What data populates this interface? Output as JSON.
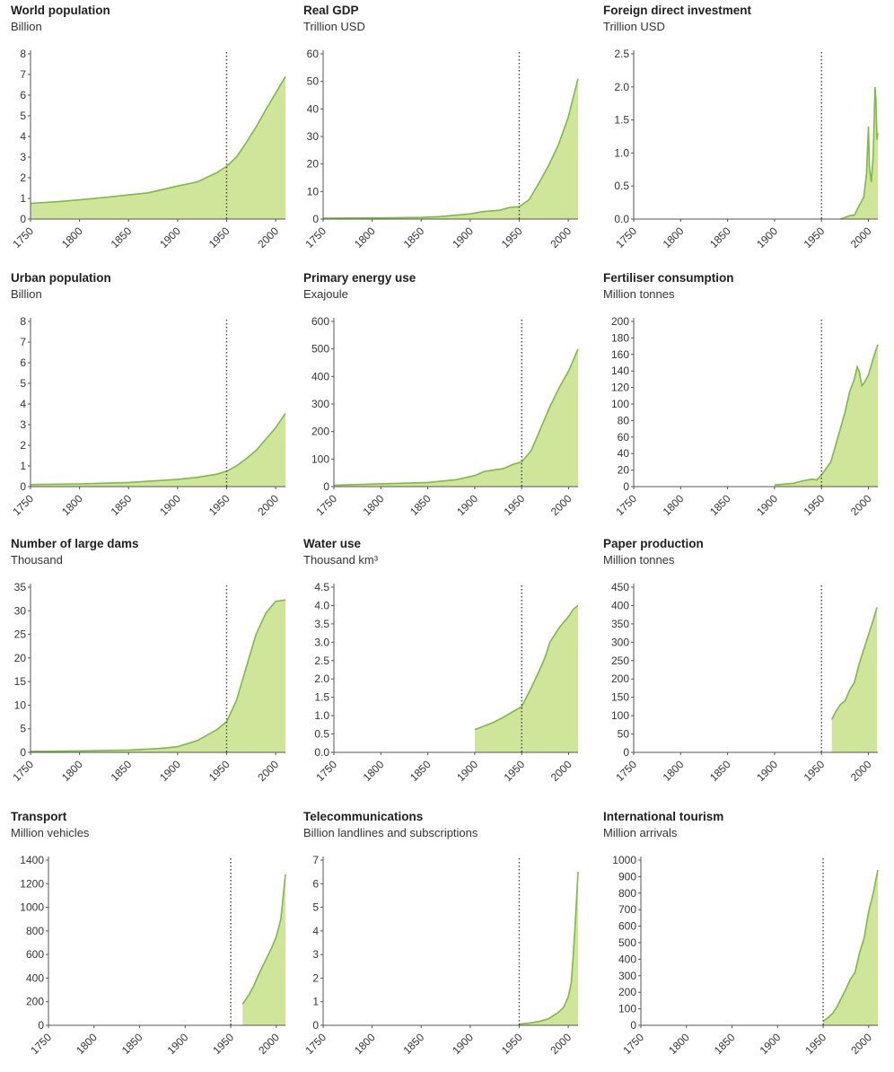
{
  "fill_color": "#cfe59a",
  "line_color": "#7dbb42",
  "axis_color": "#555555",
  "marker_color": "#444444",
  "marker_year": 1950,
  "chart_data": [
    {
      "type": "area",
      "title": "World population",
      "ylabel": "Billion",
      "xlim": [
        1750,
        2010
      ],
      "ylim": [
        0,
        8
      ],
      "yticks": [
        0,
        1,
        2,
        3,
        4,
        5,
        6,
        7,
        8
      ],
      "yticklabels": [
        "0",
        "1",
        "2",
        "3",
        "4",
        "5",
        "6",
        "7",
        "8"
      ],
      "xticks": [
        1750,
        1800,
        1850,
        1900,
        1950,
        2000
      ],
      "x": [
        1750,
        1780,
        1800,
        1820,
        1850,
        1870,
        1900,
        1920,
        1940,
        1950,
        1960,
        1970,
        1980,
        1990,
        2000,
        2010
      ],
      "y": [
        0.76,
        0.85,
        0.93,
        1.02,
        1.17,
        1.27,
        1.6,
        1.8,
        2.25,
        2.55,
        3.0,
        3.7,
        4.45,
        5.3,
        6.1,
        6.9
      ]
    },
    {
      "type": "area",
      "title": "Real GDP",
      "ylabel": "Trillion USD",
      "xlim": [
        1750,
        2010
      ],
      "ylim": [
        0,
        60
      ],
      "yticks": [
        0,
        10,
        20,
        30,
        40,
        50,
        60
      ],
      "yticklabels": [
        "0",
        "10",
        "20",
        "30",
        "40",
        "50",
        "60"
      ],
      "xticks": [
        1750,
        1800,
        1850,
        1900,
        1950,
        2000
      ],
      "x": [
        1750,
        1800,
        1850,
        1870,
        1900,
        1913,
        1930,
        1940,
        1950,
        1960,
        1970,
        1980,
        1990,
        2000,
        2005,
        2010
      ],
      "y": [
        0.3,
        0.4,
        0.6,
        0.9,
        1.9,
        2.7,
        3.2,
        4.2,
        4.5,
        7.0,
        13.0,
        19.5,
        27.0,
        37.0,
        44.0,
        51.0
      ]
    },
    {
      "type": "area",
      "title": "Foreign direct investment",
      "ylabel": "Trillion USD",
      "xlim": [
        1750,
        2010
      ],
      "ylim": [
        0,
        2.5
      ],
      "yticks": [
        0,
        0.5,
        1.0,
        1.5,
        2.0,
        2.5
      ],
      "yticklabels": [
        "0.0",
        "0.5",
        "1.0",
        "1.5",
        "2.0",
        "2.5"
      ],
      "xticks": [
        1750,
        1800,
        1850,
        1900,
        1950,
        2000
      ],
      "x": [
        1970,
        1980,
        1985,
        1990,
        1995,
        1998,
        2000,
        2001,
        2003,
        2005,
        2007,
        2008,
        2009,
        2010
      ],
      "y": [
        0.0,
        0.05,
        0.06,
        0.2,
        0.33,
        0.69,
        1.4,
        0.8,
        0.56,
        0.95,
        2.0,
        1.8,
        1.2,
        1.3
      ]
    },
    {
      "type": "area",
      "title": "Urban population",
      "ylabel": "Billion",
      "xlim": [
        1750,
        2010
      ],
      "ylim": [
        0,
        8
      ],
      "yticks": [
        0,
        1,
        2,
        3,
        4,
        5,
        6,
        7,
        8
      ],
      "yticklabels": [
        "0",
        "1",
        "2",
        "3",
        "4",
        "5",
        "6",
        "7",
        "8"
      ],
      "xticks": [
        1750,
        1800,
        1850,
        1900,
        1950,
        2000
      ],
      "x": [
        1750,
        1800,
        1850,
        1900,
        1920,
        1940,
        1950,
        1960,
        1970,
        1980,
        1990,
        2000,
        2010
      ],
      "y": [
        0.1,
        0.13,
        0.2,
        0.35,
        0.45,
        0.6,
        0.75,
        1.0,
        1.35,
        1.75,
        2.3,
        2.85,
        3.55
      ]
    },
    {
      "type": "area",
      "title": "Primary energy use",
      "ylabel": "Exajoule",
      "xlim": [
        1750,
        2010
      ],
      "ylim": [
        0,
        600
      ],
      "yticks": [
        0,
        100,
        200,
        300,
        400,
        500,
        600
      ],
      "yticklabels": [
        "0",
        "100",
        "200",
        "300",
        "400",
        "500",
        "600"
      ],
      "xticks": [
        1750,
        1800,
        1850,
        1900,
        1950,
        2000
      ],
      "x": [
        1750,
        1800,
        1850,
        1880,
        1900,
        1910,
        1920,
        1930,
        1940,
        1950,
        1960,
        1970,
        1980,
        1990,
        2000,
        2005,
        2010
      ],
      "y": [
        5,
        10,
        15,
        25,
        40,
        55,
        60,
        65,
        80,
        90,
        130,
        210,
        290,
        360,
        420,
        460,
        500
      ]
    },
    {
      "type": "area",
      "title": "Fertiliser consumption",
      "ylabel": "Million tonnes",
      "xlim": [
        1750,
        2010
      ],
      "ylim": [
        0,
        200
      ],
      "yticks": [
        0,
        20,
        40,
        60,
        80,
        100,
        120,
        140,
        160,
        180,
        200
      ],
      "yticklabels": [
        "0",
        "20",
        "40",
        "60",
        "80",
        "100",
        "120",
        "140",
        "160",
        "180",
        "200"
      ],
      "xticks": [
        1750,
        1800,
        1850,
        1900,
        1950,
        2000
      ],
      "x": [
        1900,
        1920,
        1930,
        1940,
        1945,
        1950,
        1960,
        1965,
        1970,
        1975,
        1980,
        1985,
        1988,
        1990,
        1993,
        1995,
        2000,
        2005,
        2010
      ],
      "y": [
        2,
        4,
        7,
        9,
        8,
        14,
        30,
        50,
        70,
        90,
        115,
        130,
        145,
        140,
        122,
        125,
        135,
        155,
        172
      ]
    },
    {
      "type": "area",
      "title": "Number of large dams",
      "ylabel": "Thousand",
      "xlim": [
        1750,
        2010
      ],
      "ylim": [
        0,
        35
      ],
      "yticks": [
        0,
        5,
        10,
        15,
        20,
        25,
        30,
        35
      ],
      "yticklabels": [
        "0",
        "5",
        "10",
        "15",
        "20",
        "25",
        "30",
        "35"
      ],
      "xticks": [
        1750,
        1800,
        1850,
        1900,
        1950,
        2000
      ],
      "x": [
        1750,
        1800,
        1850,
        1880,
        1900,
        1920,
        1940,
        1950,
        1960,
        1970,
        1980,
        1990,
        2000,
        2010
      ],
      "y": [
        0.2,
        0.3,
        0.5,
        0.8,
        1.2,
        2.5,
        4.8,
        6.5,
        11.0,
        18.0,
        25.0,
        29.5,
        32.0,
        32.3
      ]
    },
    {
      "type": "area",
      "title": "Water use",
      "ylabel": "Thousand km³",
      "xlim": [
        1750,
        2010
      ],
      "ylim": [
        0,
        4.5
      ],
      "yticks": [
        0,
        0.5,
        1.0,
        1.5,
        2.0,
        2.5,
        3.0,
        3.5,
        4.0,
        4.5
      ],
      "yticklabels": [
        "0.0",
        "0.5",
        "1.0",
        "1.5",
        "2.0",
        "2.5",
        "3.0",
        "3.5",
        "4.0",
        "4.5"
      ],
      "xticks": [
        1750,
        1800,
        1850,
        1900,
        1950,
        2000
      ],
      "x": [
        1900,
        1910,
        1920,
        1930,
        1940,
        1950,
        1960,
        1970,
        1975,
        1980,
        1985,
        1990,
        1995,
        2000,
        2005,
        2010
      ],
      "y": [
        0.62,
        0.72,
        0.82,
        0.95,
        1.1,
        1.25,
        1.75,
        2.3,
        2.6,
        3.0,
        3.2,
        3.4,
        3.55,
        3.7,
        3.9,
        4.0
      ]
    },
    {
      "type": "area",
      "title": "Paper production",
      "ylabel": "Million tonnes",
      "xlim": [
        1750,
        2010
      ],
      "ylim": [
        0,
        450
      ],
      "yticks": [
        0,
        50,
        100,
        150,
        200,
        250,
        300,
        350,
        400,
        450
      ],
      "yticklabels": [
        "0",
        "50",
        "100",
        "150",
        "200",
        "250",
        "300",
        "350",
        "400",
        "450"
      ],
      "xticks": [
        1750,
        1800,
        1850,
        1900,
        1950,
        2000
      ],
      "x": [
        1961,
        1965,
        1970,
        1975,
        1980,
        1985,
        1990,
        1995,
        2000,
        2005,
        2009
      ],
      "y": [
        90,
        110,
        130,
        140,
        170,
        190,
        240,
        280,
        320,
        360,
        395
      ]
    },
    {
      "type": "area",
      "title": "Transport",
      "ylabel": "Million vehicles",
      "xlim": [
        1750,
        2010
      ],
      "ylim": [
        0,
        1400
      ],
      "yticks": [
        0,
        200,
        400,
        600,
        800,
        1000,
        1200,
        1400
      ],
      "yticklabels": [
        "0",
        "200",
        "400",
        "600",
        "800",
        "1000",
        "1200",
        "1400"
      ],
      "xticks": [
        1750,
        1800,
        1850,
        1900,
        1950,
        2000
      ],
      "x": [
        1963,
        1970,
        1975,
        1980,
        1985,
        1990,
        1995,
        2000,
        2005,
        2010
      ],
      "y": [
        180,
        260,
        330,
        420,
        500,
        580,
        660,
        750,
        900,
        1280
      ]
    },
    {
      "type": "area",
      "title": "Telecommunications",
      "ylabel": "Billion landlines and subscriptions",
      "xlim": [
        1750,
        2010
      ],
      "ylim": [
        0,
        7
      ],
      "yticks": [
        0,
        1,
        2,
        3,
        4,
        5,
        6,
        7
      ],
      "yticklabels": [
        "0",
        "1",
        "2",
        "3",
        "4",
        "5",
        "6",
        "7"
      ],
      "xticks": [
        1750,
        1800,
        1850,
        1900,
        1950,
        2000
      ],
      "x": [
        1950,
        1960,
        1970,
        1980,
        1990,
        1995,
        2000,
        2003,
        2005,
        2007,
        2010
      ],
      "y": [
        0.05,
        0.09,
        0.16,
        0.28,
        0.55,
        0.75,
        1.2,
        1.8,
        2.9,
        4.2,
        6.5
      ]
    },
    {
      "type": "area",
      "title": "International tourism",
      "ylabel": "Million arrivals",
      "xlim": [
        1750,
        2010
      ],
      "ylim": [
        0,
        1000
      ],
      "yticks": [
        0,
        100,
        200,
        300,
        400,
        500,
        600,
        700,
        800,
        900,
        1000
      ],
      "yticklabels": [
        "0",
        "100",
        "200",
        "300",
        "400",
        "500",
        "600",
        "700",
        "800",
        "900",
        "1000"
      ],
      "xticks": [
        1750,
        1800,
        1850,
        1900,
        1950,
        2000
      ],
      "x": [
        1950,
        1955,
        1960,
        1965,
        1970,
        1975,
        1980,
        1985,
        1990,
        1995,
        2000,
        2005,
        2010
      ],
      "y": [
        25,
        45,
        70,
        110,
        165,
        220,
        280,
        320,
        440,
        530,
        690,
        800,
        940
      ]
    }
  ]
}
